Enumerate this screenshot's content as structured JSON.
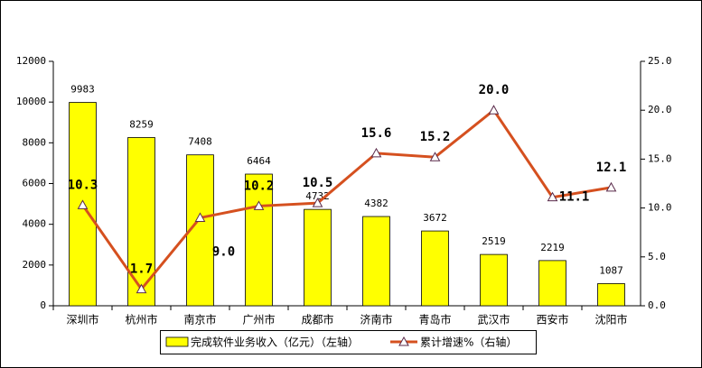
{
  "chart_data": {
    "type": "bar_line",
    "categories": [
      "深圳市",
      "杭州市",
      "南京市",
      "广州市",
      "成都市",
      "济南市",
      "青岛市",
      "武汉市",
      "西安市",
      "沈阳市"
    ],
    "series": [
      {
        "name": "完成软件业务收入（亿元）（左轴）",
        "type": "bar",
        "color": "#ffff00",
        "values": [
          9983,
          8259,
          7408,
          6464,
          4732,
          4382,
          3672,
          2519,
          2219,
          1087
        ]
      },
      {
        "name": "累计增速%（右轴）",
        "type": "line",
        "axis": "y2",
        "color": "#d5501f",
        "values": [
          10.3,
          1.7,
          9.0,
          10.2,
          10.5,
          15.6,
          15.2,
          20.0,
          11.1,
          12.1
        ],
        "value_labels": [
          "10.3",
          "1.7",
          "9.0",
          "10.2",
          "10.5",
          "15.6",
          "15.2",
          "20.0",
          "11.1",
          "12.1"
        ]
      }
    ],
    "ylim": [
      0,
      12000
    ],
    "yticks": [
      0,
      2000,
      4000,
      6000,
      8000,
      10000,
      12000
    ],
    "y2lim": [
      0,
      25
    ],
    "y2ticks": [
      {
        "value": 0,
        "label": "0.0"
      },
      {
        "value": 5,
        "label": "5.0"
      },
      {
        "value": 10,
        "label": "10.0"
      },
      {
        "value": 15,
        "label": "15.0"
      },
      {
        "value": 20,
        "label": "20.0"
      },
      {
        "value": 25,
        "label": "25.0"
      }
    ],
    "legend": "bottom"
  }
}
